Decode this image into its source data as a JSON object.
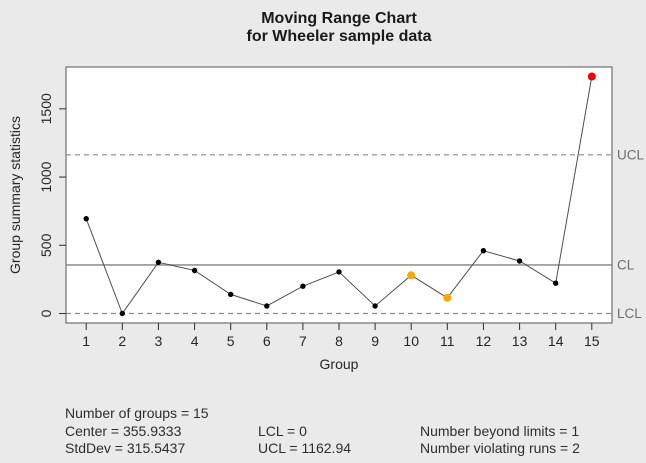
{
  "chart_data": {
    "type": "line",
    "title": "Moving Range Chart",
    "subtitle": "for Wheeler sample data",
    "xlabel": "Group",
    "ylabel": "Group summary statistics",
    "x": [
      1,
      2,
      3,
      4,
      5,
      6,
      7,
      8,
      9,
      10,
      11,
      12,
      13,
      14,
      15
    ],
    "values": [
      695,
      0,
      375,
      315,
      140,
      55,
      200,
      305,
      55,
      280,
      115,
      460,
      385,
      222,
      1737
    ],
    "point_states": [
      "normal",
      "normal",
      "normal",
      "normal",
      "normal",
      "normal",
      "normal",
      "normal",
      "normal",
      "runs",
      "runs",
      "normal",
      "normal",
      "normal",
      "beyond"
    ],
    "center": 355.9333,
    "lcl": 0,
    "ucl": 1162.94,
    "ylim": [
      0,
      1737
    ],
    "yticks": [
      0,
      500,
      1000,
      1500
    ],
    "line_labels": {
      "ucl": "UCL",
      "cl": "CL",
      "lcl": "LCL"
    },
    "grid": false,
    "legend": "none",
    "colors": {
      "normal": "#000000",
      "runs": "#ffa500",
      "beyond": "#f40000",
      "series_line": "#4f4f4f",
      "center_line": "#a3a3a3",
      "limit_line": "#8a8a8a",
      "limit_label": "#6e6e6e"
    }
  },
  "stats": {
    "number_of_groups": "Number of groups = 15",
    "center": "Center = 355.9333",
    "stddev": "StdDev = 315.5437",
    "lcl": "LCL = 0",
    "ucl": "UCL = 1162.94",
    "number_beyond_limits": "Number beyond limits = 1",
    "number_violating_runs": "Number violating runs = 2"
  }
}
